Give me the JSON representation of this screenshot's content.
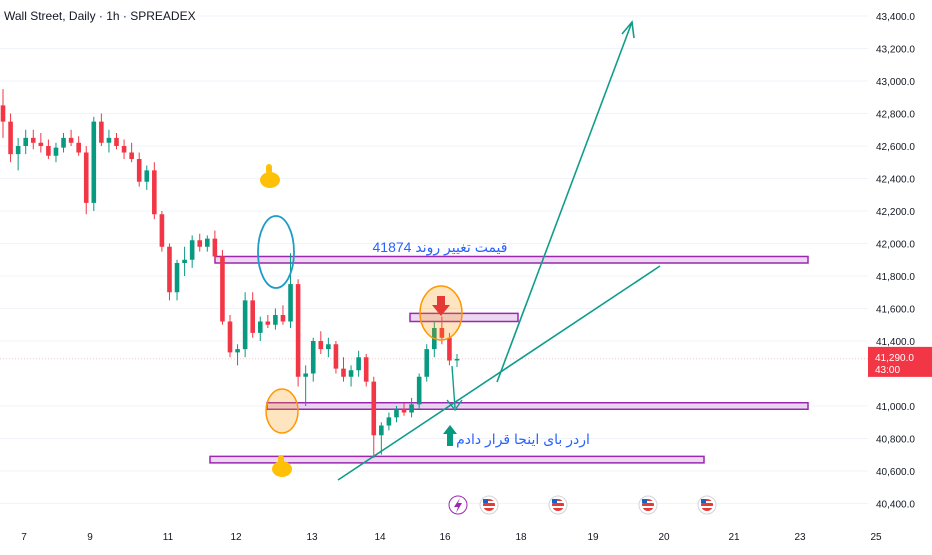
{
  "symbol_title": "Wall Street, Daily · 1h · SPREADEX",
  "price_badge": {
    "price": "41,290.0",
    "countdown": "43:00",
    "color": "#f23645"
  },
  "chart_data": {
    "type": "candlestick",
    "symbol": "Wall Street",
    "timeframe": "1h",
    "ylim": [
      40300,
      43450
    ],
    "y_ticks": [
      "43,400.0",
      "43,200.0",
      "43,000.0",
      "42,800.0",
      "42,600.0",
      "42,400.0",
      "42,200.0",
      "42,000.0",
      "41,800.0",
      "41,600.0",
      "41,400.0",
      "41,000.0",
      "40,800.0",
      "40,600.0",
      "40,400.0"
    ],
    "x_ticks": [
      "7",
      "9",
      "11",
      "12",
      "13",
      "14",
      "16",
      "18",
      "19",
      "20",
      "21",
      "23",
      "25"
    ],
    "last_price": 41290.0,
    "colors": {
      "up": "#089981",
      "down": "#f23645",
      "zone": "#9c27b0",
      "trend": "#0f9d8a",
      "annotation_text": "#2962ff"
    },
    "zones": [
      {
        "name": "resistance-zone",
        "from": 41880,
        "to": 41920
      },
      {
        "name": "sell-zone",
        "from": 41520,
        "to": 41570
      },
      {
        "name": "order-zone",
        "from": 40980,
        "to": 41020
      },
      {
        "name": "support-zone",
        "from": 40650,
        "to": 40690
      }
    ],
    "annotations": {
      "trend_change": "قیمت تغییر روند 41874",
      "order_placed": "اردر بای  اینجا قرار دادم"
    },
    "candles": [
      [
        42850,
        42950,
        42650,
        42750
      ],
      [
        42750,
        42800,
        42500,
        42550
      ],
      [
        42550,
        42650,
        42450,
        42600
      ],
      [
        42600,
        42700,
        42550,
        42650
      ],
      [
        42650,
        42700,
        42580,
        42620
      ],
      [
        42620,
        42680,
        42560,
        42600
      ],
      [
        42600,
        42640,
        42520,
        42540
      ],
      [
        42540,
        42620,
        42500,
        42590
      ],
      [
        42590,
        42680,
        42560,
        42650
      ],
      [
        42650,
        42700,
        42600,
        42620
      ],
      [
        42620,
        42660,
        42540,
        42560
      ],
      [
        42560,
        42600,
        42180,
        42250
      ],
      [
        42250,
        42780,
        42200,
        42750
      ],
      [
        42750,
        42800,
        42600,
        42620
      ],
      [
        42620,
        42700,
        42560,
        42650
      ],
      [
        42650,
        42680,
        42580,
        42600
      ],
      [
        42600,
        42640,
        42520,
        42560
      ],
      [
        42560,
        42620,
        42500,
        42520
      ],
      [
        42520,
        42560,
        42350,
        42380
      ],
      [
        42380,
        42480,
        42330,
        42450
      ],
      [
        42450,
        42500,
        42150,
        42180
      ],
      [
        42180,
        42200,
        41950,
        41980
      ],
      [
        41980,
        42000,
        41650,
        41700
      ],
      [
        41700,
        41900,
        41650,
        41880
      ],
      [
        41880,
        41980,
        41800,
        41900
      ],
      [
        41900,
        42050,
        41850,
        42020
      ],
      [
        42020,
        42060,
        41950,
        41980
      ],
      [
        41980,
        42050,
        41950,
        42030
      ],
      [
        42030,
        42080,
        41900,
        41920
      ],
      [
        41920,
        41960,
        41500,
        41520
      ],
      [
        41520,
        41560,
        41300,
        41330
      ],
      [
        41330,
        41380,
        41250,
        41350
      ],
      [
        41350,
        41700,
        41300,
        41650
      ],
      [
        41650,
        41700,
        41420,
        41450
      ],
      [
        41450,
        41550,
        41400,
        41520
      ],
      [
        41520,
        41560,
        41480,
        41500
      ],
      [
        41500,
        41600,
        41470,
        41560
      ],
      [
        41560,
        41620,
        41500,
        41520
      ],
      [
        41520,
        41940,
        41480,
        41750
      ],
      [
        41750,
        41780,
        41120,
        41180
      ],
      [
        41180,
        41250,
        41000,
        41200
      ],
      [
        41200,
        41420,
        41150,
        41400
      ],
      [
        41400,
        41460,
        41320,
        41350
      ],
      [
        41350,
        41420,
        41300,
        41380
      ],
      [
        41380,
        41400,
        41200,
        41230
      ],
      [
        41230,
        41300,
        41150,
        41180
      ],
      [
        41180,
        41250,
        41120,
        41220
      ],
      [
        41220,
        41340,
        41180,
        41300
      ],
      [
        41300,
        41320,
        41120,
        41150
      ],
      [
        41150,
        41180,
        40680,
        40820
      ],
      [
        40820,
        40900,
        40700,
        40880
      ],
      [
        40880,
        40960,
        40850,
        40930
      ],
      [
        40930,
        41000,
        40900,
        40980
      ],
      [
        40980,
        41020,
        40940,
        40960
      ],
      [
        40960,
        41050,
        40930,
        41010
      ],
      [
        41010,
        41200,
        40980,
        41180
      ],
      [
        41180,
        41380,
        41150,
        41350
      ],
      [
        41350,
        41520,
        41300,
        41480
      ],
      [
        41480,
        41550,
        41380,
        41420
      ],
      [
        41420,
        41450,
        41250,
        41280
      ],
      [
        41280,
        41320,
        41240,
        41290
      ]
    ]
  }
}
